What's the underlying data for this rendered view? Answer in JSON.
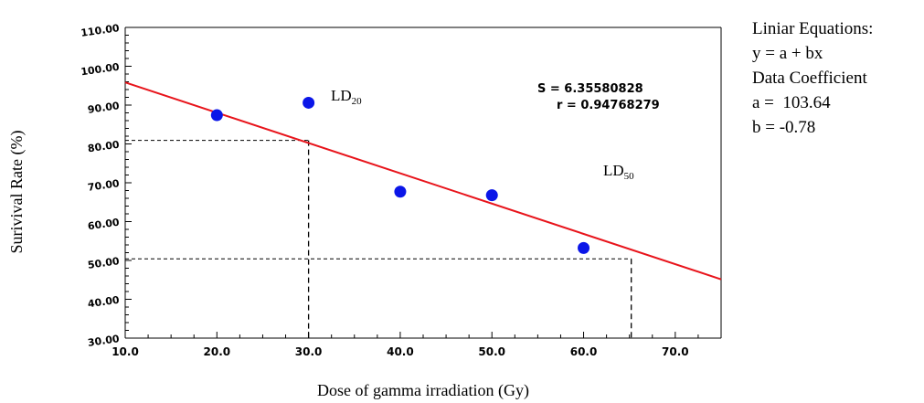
{
  "chart_data": {
    "type": "scatter",
    "xlabel": "Dose of gamma irradiation (Gy)",
    "ylabel": "Surivival Rate (%)",
    "xlim": [
      10,
      75
    ],
    "ylim": [
      30,
      110
    ],
    "x_ticks": [
      "10.0",
      "20.0",
      "30.0",
      "40.0",
      "50.0",
      "60.0",
      "70.0"
    ],
    "y_ticks": [
      "30.00",
      "40.00",
      "50.00",
      "60.00",
      "70.00",
      "80.00",
      "90.00",
      "100.00",
      "110.00"
    ],
    "points": [
      {
        "x": 20,
        "y": 87.4
      },
      {
        "x": 30,
        "y": 90.6
      },
      {
        "x": 40,
        "y": 67.7
      },
      {
        "x": 50,
        "y": 66.8
      },
      {
        "x": 60,
        "y": 53.2
      }
    ],
    "fit_line": {
      "a": 103.64,
      "b": -0.78,
      "color": "#e8141b"
    },
    "point_color": "#0b16e8",
    "stats": {
      "s": "S = 6.35580828",
      "r": "r = 0.94768279"
    },
    "ld20": {
      "label": "LD",
      "sub": "20",
      "dose": 30,
      "rate": 80.9
    },
    "ld50": {
      "label": "LD",
      "sub": "50",
      "dose": 65.2,
      "rate": 50.4
    }
  },
  "equations": {
    "heading": "Liniar Equations:",
    "formula": "y = a + bx",
    "coef_heading": "Data Coefficient",
    "a_line": "a =  103.64",
    "b_line": "b = -0.78"
  }
}
